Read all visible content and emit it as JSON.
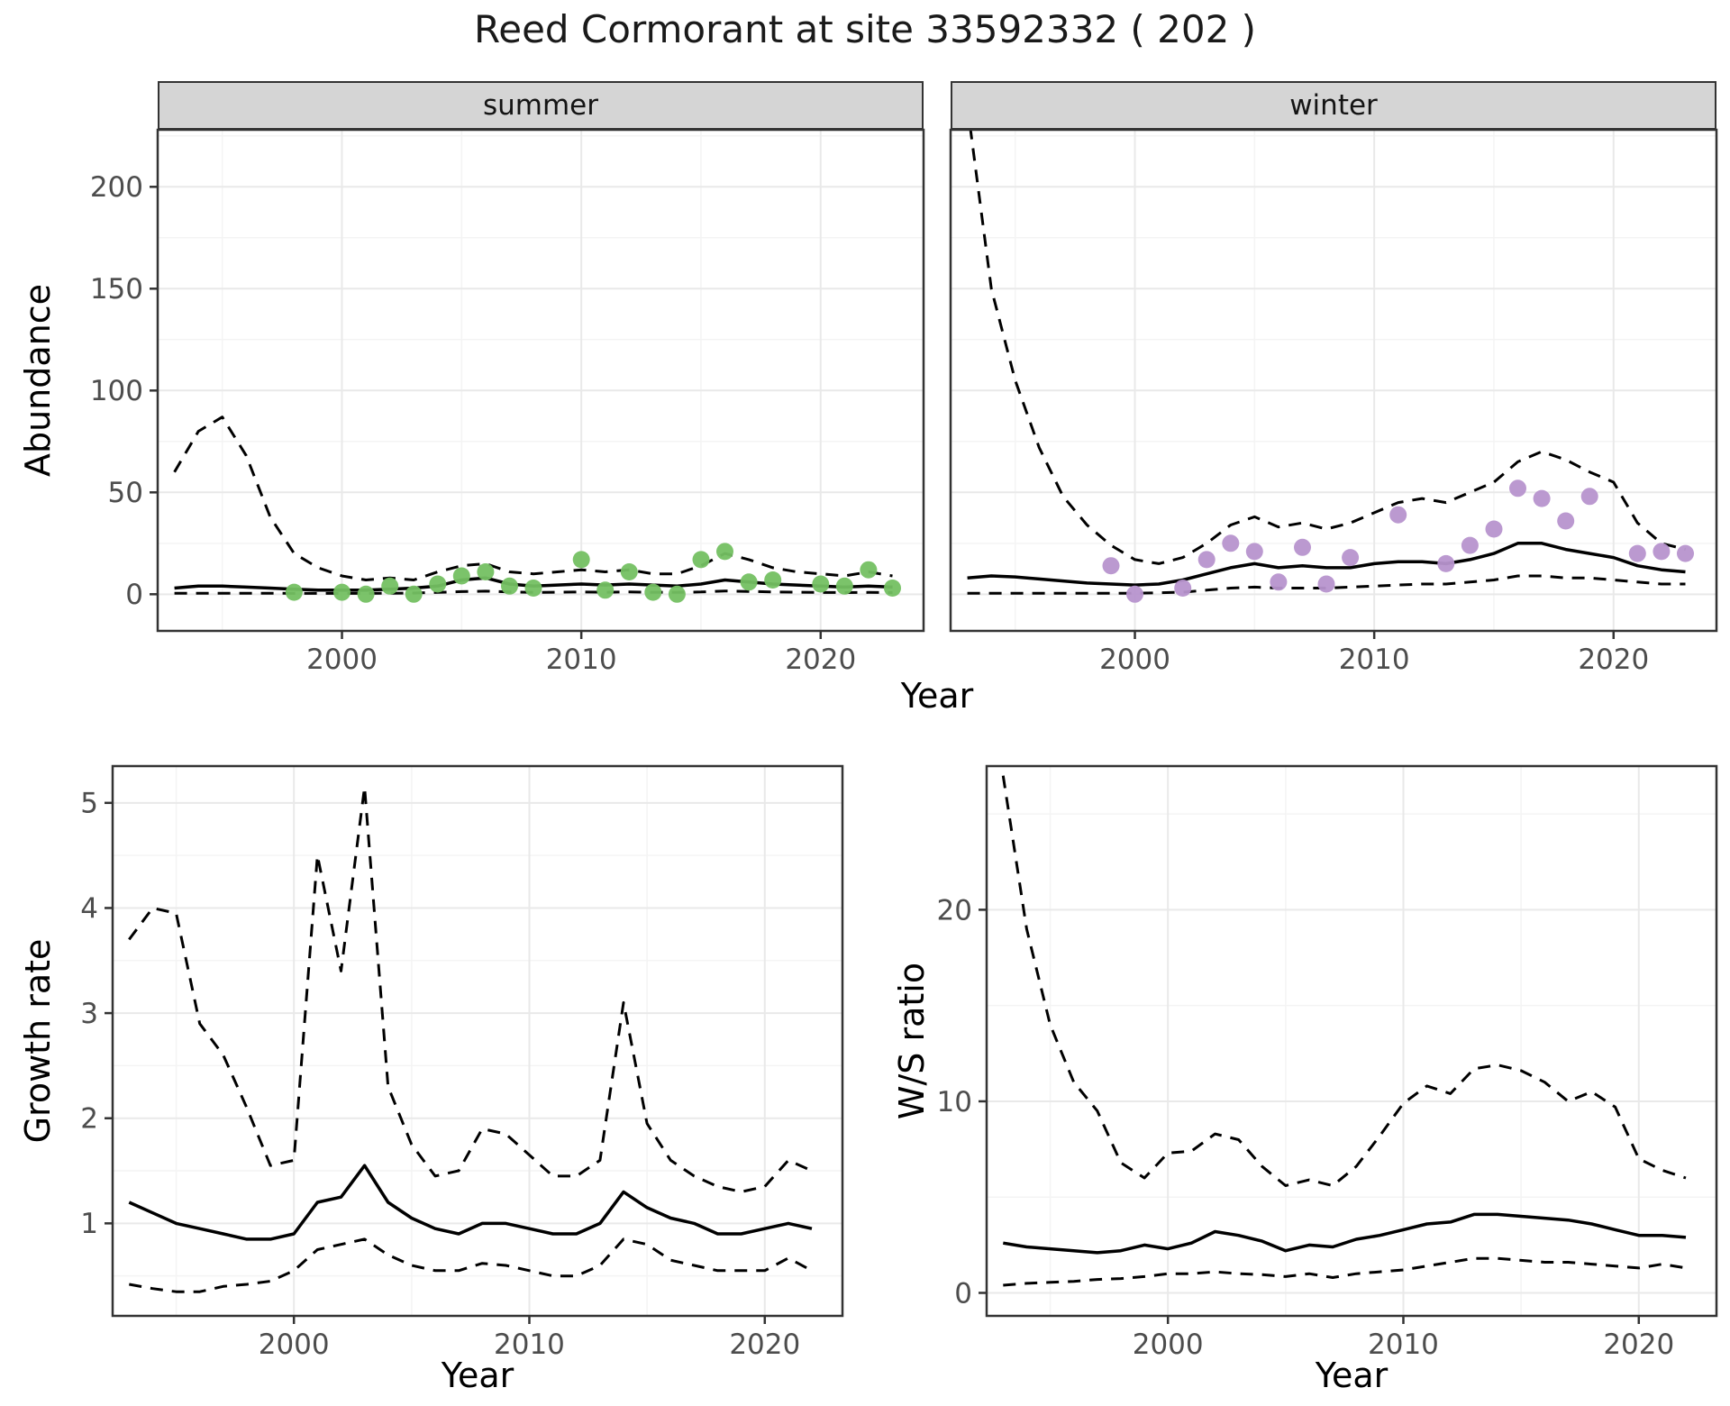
{
  "title": "Reed Cormorant at site 33592332 ( 202 )",
  "axis": {
    "x_label": "Year"
  },
  "facets": [
    "summer",
    "winter"
  ],
  "colors": {
    "summer_point": "#74c062",
    "winter_point": "#b794ce",
    "line": "#000000",
    "strip_bg": "#d5d5d5",
    "grid_major": "#e9e9e9",
    "grid_minor": "#f4f4f4",
    "panel_border": "#333333",
    "tick_text": "#4d4d4d"
  },
  "chart_data": [
    {
      "type": "line",
      "facet": "summer",
      "xlabel": "Year",
      "ylabel": "Abundance",
      "xlim": [
        1992.3,
        2024.3
      ],
      "ylim": [
        -18,
        228
      ],
      "xticks": [
        2000,
        2010,
        2020
      ],
      "yticks": [
        0,
        50,
        100,
        150,
        200
      ],
      "x": [
        1993,
        1994,
        1995,
        1996,
        1997,
        1998,
        1999,
        2000,
        2001,
        2002,
        2003,
        2004,
        2005,
        2006,
        2007,
        2008,
        2009,
        2010,
        2011,
        2012,
        2013,
        2014,
        2015,
        2016,
        2017,
        2018,
        2019,
        2020,
        2021,
        2022,
        2023
      ],
      "series": [
        {
          "name": "upper_ci",
          "style": "dashed",
          "values": [
            60,
            80,
            87,
            68,
            38,
            20,
            13,
            9,
            7,
            8,
            7,
            11,
            14,
            15,
            11,
            10,
            11,
            12,
            11,
            12,
            10,
            10,
            14,
            20,
            17,
            13,
            11,
            10,
            9,
            11,
            9
          ]
        },
        {
          "name": "mean",
          "style": "solid",
          "values": [
            3,
            4,
            4,
            3.5,
            3,
            2.5,
            2,
            2,
            2,
            2.5,
            3,
            4,
            7,
            8,
            5,
            4,
            4.5,
            5,
            4.5,
            5,
            4.5,
            4,
            5,
            7,
            6,
            5,
            4.5,
            4,
            3.5,
            4,
            3.5
          ]
        },
        {
          "name": "lower_ci",
          "style": "dashed",
          "values": [
            0.5,
            0.5,
            0.5,
            0.5,
            0.5,
            0.4,
            0.4,
            0.4,
            0.4,
            0.5,
            0.6,
            0.9,
            1.3,
            1.5,
            1.1,
            0.9,
            1,
            1.1,
            1,
            1.1,
            1,
            0.9,
            1.1,
            1.6,
            1.4,
            1.1,
            1,
            0.9,
            0.8,
            0.9,
            0.8
          ]
        }
      ],
      "points": {
        "name": "observed_summer",
        "color_key": "summer_point",
        "x": [
          1998,
          2000,
          2001,
          2002,
          2003,
          2004,
          2005,
          2006,
          2007,
          2008,
          2010,
          2011,
          2012,
          2013,
          2014,
          2015,
          2016,
          2017,
          2018,
          2020,
          2021,
          2022,
          2023
        ],
        "y": [
          1,
          1,
          0,
          4,
          0,
          5,
          9,
          11,
          4,
          3,
          17,
          2,
          11,
          1,
          0,
          17,
          21,
          6,
          7,
          5,
          4,
          12,
          3
        ]
      }
    },
    {
      "type": "line",
      "facet": "winter",
      "xlabel": "Year",
      "ylabel": "Abundance",
      "xlim": [
        1992.3,
        2024.3
      ],
      "ylim": [
        -18,
        228
      ],
      "xticks": [
        2000,
        2010,
        2020
      ],
      "yticks": [
        0,
        50,
        100,
        150,
        200
      ],
      "x": [
        1993,
        1994,
        1995,
        1996,
        1997,
        1998,
        1999,
        2000,
        2001,
        2002,
        2003,
        2004,
        2005,
        2006,
        2007,
        2008,
        2009,
        2010,
        2011,
        2012,
        2013,
        2014,
        2015,
        2016,
        2017,
        2018,
        2019,
        2020,
        2021,
        2022,
        2023
      ],
      "series": [
        {
          "name": "upper_ci",
          "style": "dashed",
          "values": [
            240,
            150,
            105,
            72,
            48,
            34,
            24,
            17,
            15,
            18,
            25,
            34,
            38,
            33,
            35,
            32,
            35,
            40,
            45,
            47,
            45,
            50,
            55,
            65,
            70,
            66,
            60,
            55,
            35,
            25,
            22
          ]
        },
        {
          "name": "mean",
          "style": "solid",
          "values": [
            8,
            9,
            8.5,
            7.5,
            6.5,
            5.5,
            5,
            4.5,
            5,
            7,
            10,
            13,
            15,
            13,
            14,
            13,
            13,
            15,
            16,
            16,
            15,
            17,
            20,
            25,
            25,
            22,
            20,
            18,
            14,
            12,
            11
          ]
        },
        {
          "name": "lower_ci",
          "style": "dashed",
          "values": [
            0.5,
            0.5,
            0.5,
            0.5,
            0.5,
            0.5,
            0.5,
            0.5,
            0.7,
            1,
            2,
            3,
            3.5,
            3,
            3,
            3,
            3.5,
            4,
            4.5,
            5,
            5,
            6,
            7,
            9,
            9,
            8,
            8,
            7,
            6,
            5,
            5
          ]
        }
      ],
      "points": {
        "name": "observed_winter",
        "color_key": "winter_point",
        "x": [
          1999,
          2000,
          2002,
          2003,
          2004,
          2005,
          2006,
          2007,
          2008,
          2009,
          2011,
          2013,
          2014,
          2015,
          2016,
          2017,
          2018,
          2019,
          2021,
          2022,
          2023
        ],
        "y": [
          14,
          0,
          3,
          17,
          25,
          21,
          6,
          23,
          5,
          18,
          39,
          15,
          24,
          32,
          52,
          47,
          36,
          48,
          20,
          21,
          20
        ]
      }
    },
    {
      "type": "line",
      "facet": null,
      "xlabel": "Year",
      "ylabel": "Growth rate",
      "xlim": [
        1992.3,
        2023.3
      ],
      "ylim": [
        0.12,
        5.35
      ],
      "xticks": [
        2000,
        2010,
        2020
      ],
      "yticks": [
        1,
        2,
        3,
        4,
        5
      ],
      "x": [
        1993,
        1994,
        1995,
        1996,
        1997,
        1998,
        1999,
        2000,
        2001,
        2002,
        2003,
        2004,
        2005,
        2006,
        2007,
        2008,
        2009,
        2010,
        2011,
        2012,
        2013,
        2014,
        2015,
        2016,
        2017,
        2018,
        2019,
        2020,
        2021,
        2022
      ],
      "series": [
        {
          "name": "upper_ci",
          "style": "dashed",
          "values": [
            3.7,
            4.0,
            3.95,
            2.9,
            2.6,
            2.1,
            1.55,
            1.6,
            4.5,
            3.4,
            5.15,
            2.3,
            1.75,
            1.45,
            1.5,
            1.9,
            1.85,
            1.65,
            1.45,
            1.45,
            1.6,
            3.1,
            1.95,
            1.6,
            1.45,
            1.35,
            1.3,
            1.35,
            1.6,
            1.5
          ]
        },
        {
          "name": "mean",
          "style": "solid",
          "values": [
            1.2,
            1.1,
            1.0,
            0.95,
            0.9,
            0.85,
            0.85,
            0.9,
            1.2,
            1.25,
            1.55,
            1.2,
            1.05,
            0.95,
            0.9,
            1.0,
            1.0,
            0.95,
            0.9,
            0.9,
            1.0,
            1.3,
            1.15,
            1.05,
            1.0,
            0.9,
            0.9,
            0.95,
            1.0,
            0.95
          ]
        },
        {
          "name": "lower_ci",
          "style": "dashed",
          "values": [
            0.42,
            0.38,
            0.35,
            0.35,
            0.4,
            0.42,
            0.45,
            0.55,
            0.75,
            0.8,
            0.85,
            0.7,
            0.6,
            0.55,
            0.55,
            0.62,
            0.6,
            0.55,
            0.5,
            0.5,
            0.6,
            0.85,
            0.8,
            0.65,
            0.6,
            0.55,
            0.55,
            0.55,
            0.67,
            0.55
          ]
        }
      ],
      "points": null
    },
    {
      "type": "line",
      "facet": null,
      "xlabel": "Year",
      "ylabel": "W/S ratio",
      "xlim": [
        1992.3,
        2023.3
      ],
      "ylim": [
        -1.2,
        27.5
      ],
      "xticks": [
        2000,
        2010,
        2020
      ],
      "yticks": [
        0,
        10,
        20
      ],
      "x": [
        1993,
        1994,
        1995,
        1996,
        1997,
        1998,
        1999,
        2000,
        2001,
        2002,
        2003,
        2004,
        2005,
        2006,
        2007,
        2008,
        2009,
        2010,
        2011,
        2012,
        2013,
        2014,
        2015,
        2016,
        2017,
        2018,
        2019,
        2020,
        2021,
        2022
      ],
      "series": [
        {
          "name": "upper_ci",
          "style": "dashed",
          "values": [
            27,
            19,
            14,
            11,
            9.5,
            6.8,
            6.0,
            7.3,
            7.4,
            8.3,
            8.0,
            6.6,
            5.6,
            5.9,
            5.6,
            6.6,
            8.2,
            9.9,
            10.8,
            10.4,
            11.7,
            11.9,
            11.6,
            11.0,
            10.0,
            10.5,
            9.7,
            7.0,
            6.4,
            6.0
          ]
        },
        {
          "name": "mean",
          "style": "solid",
          "values": [
            2.6,
            2.4,
            2.3,
            2.2,
            2.1,
            2.2,
            2.5,
            2.3,
            2.6,
            3.2,
            3.0,
            2.7,
            2.2,
            2.5,
            2.4,
            2.8,
            3.0,
            3.3,
            3.6,
            3.7,
            4.1,
            4.1,
            4.0,
            3.9,
            3.8,
            3.6,
            3.3,
            3.0,
            3.0,
            2.9
          ]
        },
        {
          "name": "lower_ci",
          "style": "dashed",
          "values": [
            0.4,
            0.5,
            0.55,
            0.6,
            0.7,
            0.75,
            0.85,
            1.0,
            1.0,
            1.1,
            1.0,
            0.95,
            0.85,
            1.0,
            0.8,
            1.0,
            1.1,
            1.2,
            1.4,
            1.6,
            1.8,
            1.8,
            1.7,
            1.6,
            1.6,
            1.5,
            1.4,
            1.3,
            1.5,
            1.3
          ]
        }
      ],
      "points": null
    }
  ]
}
